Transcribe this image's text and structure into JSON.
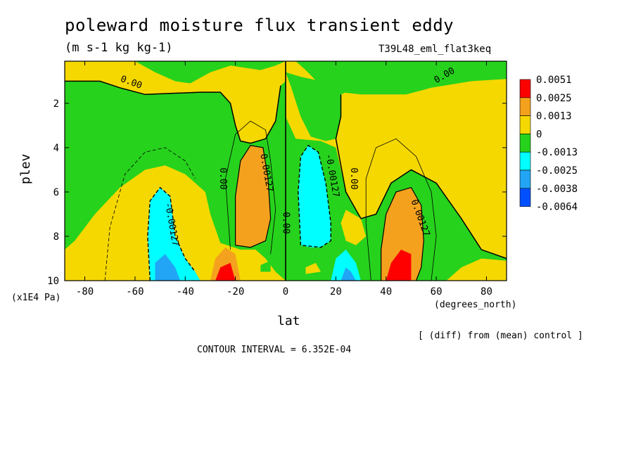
{
  "chart_data": {
    "type": "heatmap",
    "title": "poleward moisture flux transient eddy",
    "subtitle": "(m s-1 kg kg-1)",
    "run_label": "T39L48_eml_flat3keq",
    "xlabel": "lat",
    "ylabel": "plev",
    "x_unit": "(degrees_north)",
    "y_unit": "(x1E4 Pa)",
    "note": "[ (diff) from (mean) control ]",
    "contour_interval_text": "CONTOUR INTERVAL = 6.352E-04",
    "xlim": [
      -88,
      88
    ],
    "ylim": [
      10,
      0.1
    ],
    "x_ticks": [
      -80,
      -60,
      -40,
      -20,
      0,
      20,
      40,
      60,
      80
    ],
    "y_ticks": [
      2,
      4,
      6,
      8,
      10
    ],
    "colorbar": {
      "levels": [
        "0.0051",
        "0.0025",
        "0.0013",
        "0",
        "-0.0013",
        "-0.0025",
        "-0.0038",
        "-0.0064"
      ],
      "colors": [
        "#ff0000",
        "#f4a11e",
        "#f5d800",
        "#26d21c",
        "#00ffff",
        "#22a5f4",
        "#0050ff"
      ]
    },
    "contour_labels": [
      "0.00",
      "0.00",
      "0.00",
      "0.00",
      "0.00",
      "0.00127",
      "-0.00127",
      "-0.00127",
      "0.00127"
    ],
    "regions": [
      {
        "lat_range": [
          -52,
          -44
        ],
        "plev_range": [
          9.2,
          10
        ],
        "value": -0.0038
      },
      {
        "lat_range": [
          -54,
          -38
        ],
        "plev_range": [
          5.8,
          10
        ],
        "value": -0.0025
      },
      {
        "lat_range": [
          -28,
          -20
        ],
        "plev_range": [
          8.5,
          10
        ],
        "value": 0.0025
      },
      {
        "lat_range": [
          -20,
          -6
        ],
        "plev_range": [
          3.9,
          8.4
        ],
        "value": 0.0013
      },
      {
        "lat_range": [
          6,
          20
        ],
        "plev_range": [
          3.9,
          8.4
        ],
        "value": -0.0013
      },
      {
        "lat_range": [
          20,
          28
        ],
        "plev_range": [
          8.5,
          10
        ],
        "value": -0.0025
      },
      {
        "lat_range": [
          38,
          54
        ],
        "plev_range": [
          5.8,
          10
        ],
        "value": 0.0025
      },
      {
        "lat_range": [
          42,
          52
        ],
        "plev_range": [
          8.6,
          10
        ],
        "value": 0.0051
      }
    ]
  }
}
